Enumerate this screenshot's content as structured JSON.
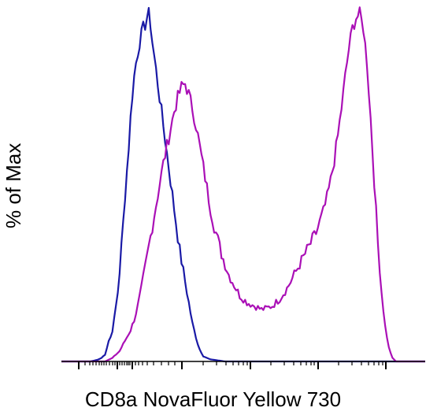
{
  "chart_data": {
    "type": "line",
    "title": "",
    "xlabel": "CD8a NovaFluor Yellow 730",
    "ylabel": "% of Max",
    "xscale": "biexponential",
    "x_tick_labels": [],
    "y_tick_labels": [],
    "ylim": [
      0,
      100
    ],
    "xlim": [
      0,
      100
    ],
    "grid": false,
    "legend": "none",
    "series": [
      {
        "color": "#1a1aa6",
        "values": [
          [
            0,
            0
          ],
          [
            8,
            0
          ],
          [
            10,
            0.5
          ],
          [
            11,
            1
          ],
          [
            12,
            2
          ],
          [
            12.5,
            4
          ],
          [
            13,
            6
          ],
          [
            13.5,
            7
          ],
          [
            14,
            9
          ],
          [
            14.5,
            12
          ],
          [
            15,
            16
          ],
          [
            15.5,
            20
          ],
          [
            16,
            26
          ],
          [
            16.5,
            33
          ],
          [
            17,
            40
          ],
          [
            17.5,
            48
          ],
          [
            18,
            55
          ],
          [
            18.5,
            62
          ],
          [
            19,
            70
          ],
          [
            19.5,
            77
          ],
          [
            20,
            82
          ],
          [
            20.5,
            86
          ],
          [
            21,
            89
          ],
          [
            21.5,
            92
          ],
          [
            22,
            94
          ],
          [
            22.5,
            96
          ],
          [
            23,
            97
          ],
          [
            23.5,
            99
          ],
          [
            24,
            100
          ],
          [
            24.5,
            97
          ],
          [
            25,
            92
          ],
          [
            25.5,
            88
          ],
          [
            26,
            84
          ],
          [
            26.5,
            80
          ],
          [
            27,
            76
          ],
          [
            27.5,
            72
          ],
          [
            28,
            68
          ],
          [
            28.5,
            64
          ],
          [
            29,
            60
          ],
          [
            29.5,
            56
          ],
          [
            30,
            52
          ],
          [
            30.5,
            48
          ],
          [
            31,
            44
          ],
          [
            31.5,
            40
          ],
          [
            32,
            36
          ],
          [
            32.5,
            32
          ],
          [
            33,
            29
          ],
          [
            33.5,
            26
          ],
          [
            34,
            23
          ],
          [
            34.5,
            20
          ],
          [
            35,
            17
          ],
          [
            35.5,
            14
          ],
          [
            36,
            11
          ],
          [
            36.5,
            9
          ],
          [
            37,
            7
          ],
          [
            37.5,
            5
          ],
          [
            38,
            3.5
          ],
          [
            38.5,
            2.5
          ],
          [
            39,
            1.5
          ],
          [
            40,
            1
          ],
          [
            41,
            0.6
          ],
          [
            43,
            0.3
          ],
          [
            45,
            0
          ],
          [
            100,
            0
          ]
        ]
      },
      {
        "color": "#aa10b6",
        "values": [
          [
            0,
            0
          ],
          [
            12,
            0
          ],
          [
            13,
            0.5
          ],
          [
            14,
            1
          ],
          [
            15,
            2
          ],
          [
            16,
            3
          ],
          [
            17,
            5
          ],
          [
            18,
            7
          ],
          [
            19,
            9
          ],
          [
            20,
            12
          ],
          [
            21,
            16
          ],
          [
            22,
            21
          ],
          [
            23,
            27
          ],
          [
            24,
            33
          ],
          [
            25,
            39
          ],
          [
            26,
            45
          ],
          [
            27,
            51
          ],
          [
            28,
            57
          ],
          [
            29,
            62
          ],
          [
            30,
            67
          ],
          [
            31,
            72
          ],
          [
            32,
            76
          ],
          [
            33,
            79
          ],
          [
            34,
            80
          ],
          [
            35,
            77
          ],
          [
            36,
            73
          ],
          [
            37,
            68
          ],
          [
            38,
            62
          ],
          [
            39,
            56
          ],
          [
            40,
            50
          ],
          [
            41,
            44
          ],
          [
            42,
            39
          ],
          [
            43,
            35
          ],
          [
            44,
            31
          ],
          [
            45,
            28
          ],
          [
            46,
            25
          ],
          [
            47,
            23
          ],
          [
            48,
            21
          ],
          [
            49,
            19
          ],
          [
            50,
            18
          ],
          [
            51,
            17
          ],
          [
            52,
            16.5
          ],
          [
            53,
            16
          ],
          [
            54,
            15.5
          ],
          [
            55,
            15
          ],
          [
            56,
            15.2
          ],
          [
            57,
            15.6
          ],
          [
            58,
            16
          ],
          [
            59,
            17
          ],
          [
            60,
            18
          ],
          [
            61,
            19.5
          ],
          [
            62,
            21
          ],
          [
            63,
            23
          ],
          [
            64,
            25
          ],
          [
            65,
            27
          ],
          [
            66,
            29
          ],
          [
            67,
            31
          ],
          [
            68,
            33
          ],
          [
            69,
            35
          ],
          [
            70,
            37
          ],
          [
            71,
            40
          ],
          [
            72,
            43
          ],
          [
            73,
            47
          ],
          [
            74,
            52
          ],
          [
            75,
            58
          ],
          [
            76,
            65
          ],
          [
            77,
            73
          ],
          [
            78,
            82
          ],
          [
            79,
            90
          ],
          [
            80,
            96
          ],
          [
            81,
            99
          ],
          [
            82,
            100
          ],
          [
            83,
            96
          ],
          [
            84,
            86
          ],
          [
            85,
            70
          ],
          [
            86,
            52
          ],
          [
            87,
            34
          ],
          [
            88,
            20
          ],
          [
            89,
            10
          ],
          [
            90,
            4
          ],
          [
            91,
            1
          ],
          [
            92,
            0
          ],
          [
            100,
            0
          ]
        ]
      }
    ]
  }
}
